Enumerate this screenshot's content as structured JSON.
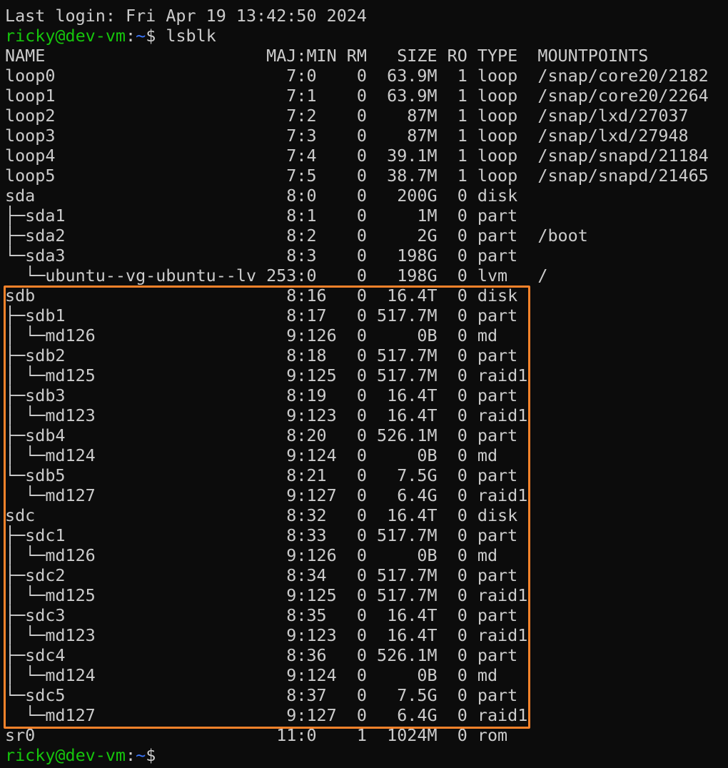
{
  "terminal": {
    "last_login": "Last login: Fri Apr 19 13:42:50 2024",
    "prompt": {
      "user_host": "ricky@dev-vm",
      "sep": ":",
      "path": "~",
      "symbol": "$ "
    },
    "command": "lsblk",
    "colors": {
      "prompt_user": "#16c60c",
      "prompt_path": "#3b78ff",
      "text": "#cccccc",
      "background": "#0c0c0c",
      "highlight_box": "#f7822a"
    },
    "headers": {
      "name": "NAME",
      "majmin": "MAJ:MIN",
      "rm": "RM",
      "size": "SIZE",
      "ro": "RO",
      "type": "TYPE",
      "mountpoints": "MOUNTPOINTS"
    },
    "rows": [
      {
        "name": "loop0",
        "maj": "7",
        "min": "0",
        "rm": "0",
        "size": "63.9M",
        "ro": "1",
        "type": "loop",
        "mount": "/snap/core20/2182"
      },
      {
        "name": "loop1",
        "maj": "7",
        "min": "1",
        "rm": "0",
        "size": "63.9M",
        "ro": "1",
        "type": "loop",
        "mount": "/snap/core20/2264"
      },
      {
        "name": "loop2",
        "maj": "7",
        "min": "2",
        "rm": "0",
        "size": "87M",
        "ro": "1",
        "type": "loop",
        "mount": "/snap/lxd/27037"
      },
      {
        "name": "loop3",
        "maj": "7",
        "min": "3",
        "rm": "0",
        "size": "87M",
        "ro": "1",
        "type": "loop",
        "mount": "/snap/lxd/27948"
      },
      {
        "name": "loop4",
        "maj": "7",
        "min": "4",
        "rm": "0",
        "size": "39.1M",
        "ro": "1",
        "type": "loop",
        "mount": "/snap/snapd/21184"
      },
      {
        "name": "loop5",
        "maj": "7",
        "min": "5",
        "rm": "0",
        "size": "38.7M",
        "ro": "1",
        "type": "loop",
        "mount": "/snap/snapd/21465"
      },
      {
        "name": "sda",
        "maj": "8",
        "min": "0",
        "rm": "0",
        "size": "200G",
        "ro": "0",
        "type": "disk",
        "mount": ""
      },
      {
        "name": "├─sda1",
        "maj": "8",
        "min": "1",
        "rm": "0",
        "size": "1M",
        "ro": "0",
        "type": "part",
        "mount": ""
      },
      {
        "name": "├─sda2",
        "maj": "8",
        "min": "2",
        "rm": "0",
        "size": "2G",
        "ro": "0",
        "type": "part",
        "mount": "/boot"
      },
      {
        "name": "└─sda3",
        "maj": "8",
        "min": "3",
        "rm": "0",
        "size": "198G",
        "ro": "0",
        "type": "part",
        "mount": ""
      },
      {
        "name": "  └─ubuntu--vg-ubuntu--lv",
        "maj": "253",
        "min": "0",
        "rm": "0",
        "size": "198G",
        "ro": "0",
        "type": "lvm",
        "mount": "/"
      },
      {
        "name": "sdb",
        "maj": "8",
        "min": "16",
        "rm": "0",
        "size": "16.4T",
        "ro": "0",
        "type": "disk",
        "mount": ""
      },
      {
        "name": "├─sdb1",
        "maj": "8",
        "min": "17",
        "rm": "0",
        "size": "517.7M",
        "ro": "0",
        "type": "part",
        "mount": ""
      },
      {
        "name": "│ └─md126",
        "maj": "9",
        "min": "126",
        "rm": "0",
        "size": "0B",
        "ro": "0",
        "type": "md",
        "mount": ""
      },
      {
        "name": "├─sdb2",
        "maj": "8",
        "min": "18",
        "rm": "0",
        "size": "517.7M",
        "ro": "0",
        "type": "part",
        "mount": ""
      },
      {
        "name": "│ └─md125",
        "maj": "9",
        "min": "125",
        "rm": "0",
        "size": "517.7M",
        "ro": "0",
        "type": "raid1",
        "mount": ""
      },
      {
        "name": "├─sdb3",
        "maj": "8",
        "min": "19",
        "rm": "0",
        "size": "16.4T",
        "ro": "0",
        "type": "part",
        "mount": ""
      },
      {
        "name": "│ └─md123",
        "maj": "9",
        "min": "123",
        "rm": "0",
        "size": "16.4T",
        "ro": "0",
        "type": "raid1",
        "mount": ""
      },
      {
        "name": "├─sdb4",
        "maj": "8",
        "min": "20",
        "rm": "0",
        "size": "526.1M",
        "ro": "0",
        "type": "part",
        "mount": ""
      },
      {
        "name": "│ └─md124",
        "maj": "9",
        "min": "124",
        "rm": "0",
        "size": "0B",
        "ro": "0",
        "type": "md",
        "mount": ""
      },
      {
        "name": "└─sdb5",
        "maj": "8",
        "min": "21",
        "rm": "0",
        "size": "7.5G",
        "ro": "0",
        "type": "part",
        "mount": ""
      },
      {
        "name": "  └─md127",
        "maj": "9",
        "min": "127",
        "rm": "0",
        "size": "6.4G",
        "ro": "0",
        "type": "raid1",
        "mount": ""
      },
      {
        "name": "sdc",
        "maj": "8",
        "min": "32",
        "rm": "0",
        "size": "16.4T",
        "ro": "0",
        "type": "disk",
        "mount": ""
      },
      {
        "name": "├─sdc1",
        "maj": "8",
        "min": "33",
        "rm": "0",
        "size": "517.7M",
        "ro": "0",
        "type": "part",
        "mount": ""
      },
      {
        "name": "│ └─md126",
        "maj": "9",
        "min": "126",
        "rm": "0",
        "size": "0B",
        "ro": "0",
        "type": "md",
        "mount": ""
      },
      {
        "name": "├─sdc2",
        "maj": "8",
        "min": "34",
        "rm": "0",
        "size": "517.7M",
        "ro": "0",
        "type": "part",
        "mount": ""
      },
      {
        "name": "│ └─md125",
        "maj": "9",
        "min": "125",
        "rm": "0",
        "size": "517.7M",
        "ro": "0",
        "type": "raid1",
        "mount": ""
      },
      {
        "name": "├─sdc3",
        "maj": "8",
        "min": "35",
        "rm": "0",
        "size": "16.4T",
        "ro": "0",
        "type": "part",
        "mount": ""
      },
      {
        "name": "│ └─md123",
        "maj": "9",
        "min": "123",
        "rm": "0",
        "size": "16.4T",
        "ro": "0",
        "type": "raid1",
        "mount": ""
      },
      {
        "name": "├─sdc4",
        "maj": "8",
        "min": "36",
        "rm": "0",
        "size": "526.1M",
        "ro": "0",
        "type": "part",
        "mount": ""
      },
      {
        "name": "│ └─md124",
        "maj": "9",
        "min": "124",
        "rm": "0",
        "size": "0B",
        "ro": "0",
        "type": "md",
        "mount": ""
      },
      {
        "name": "└─sdc5",
        "maj": "8",
        "min": "37",
        "rm": "0",
        "size": "7.5G",
        "ro": "0",
        "type": "part",
        "mount": ""
      },
      {
        "name": "  └─md127",
        "maj": "9",
        "min": "127",
        "rm": "0",
        "size": "6.4G",
        "ro": "0",
        "type": "raid1",
        "mount": ""
      },
      {
        "name": "sr0",
        "maj": "11",
        "min": "0",
        "rm": "1",
        "size": "1024M",
        "ro": "0",
        "type": "rom",
        "mount": ""
      }
    ]
  }
}
